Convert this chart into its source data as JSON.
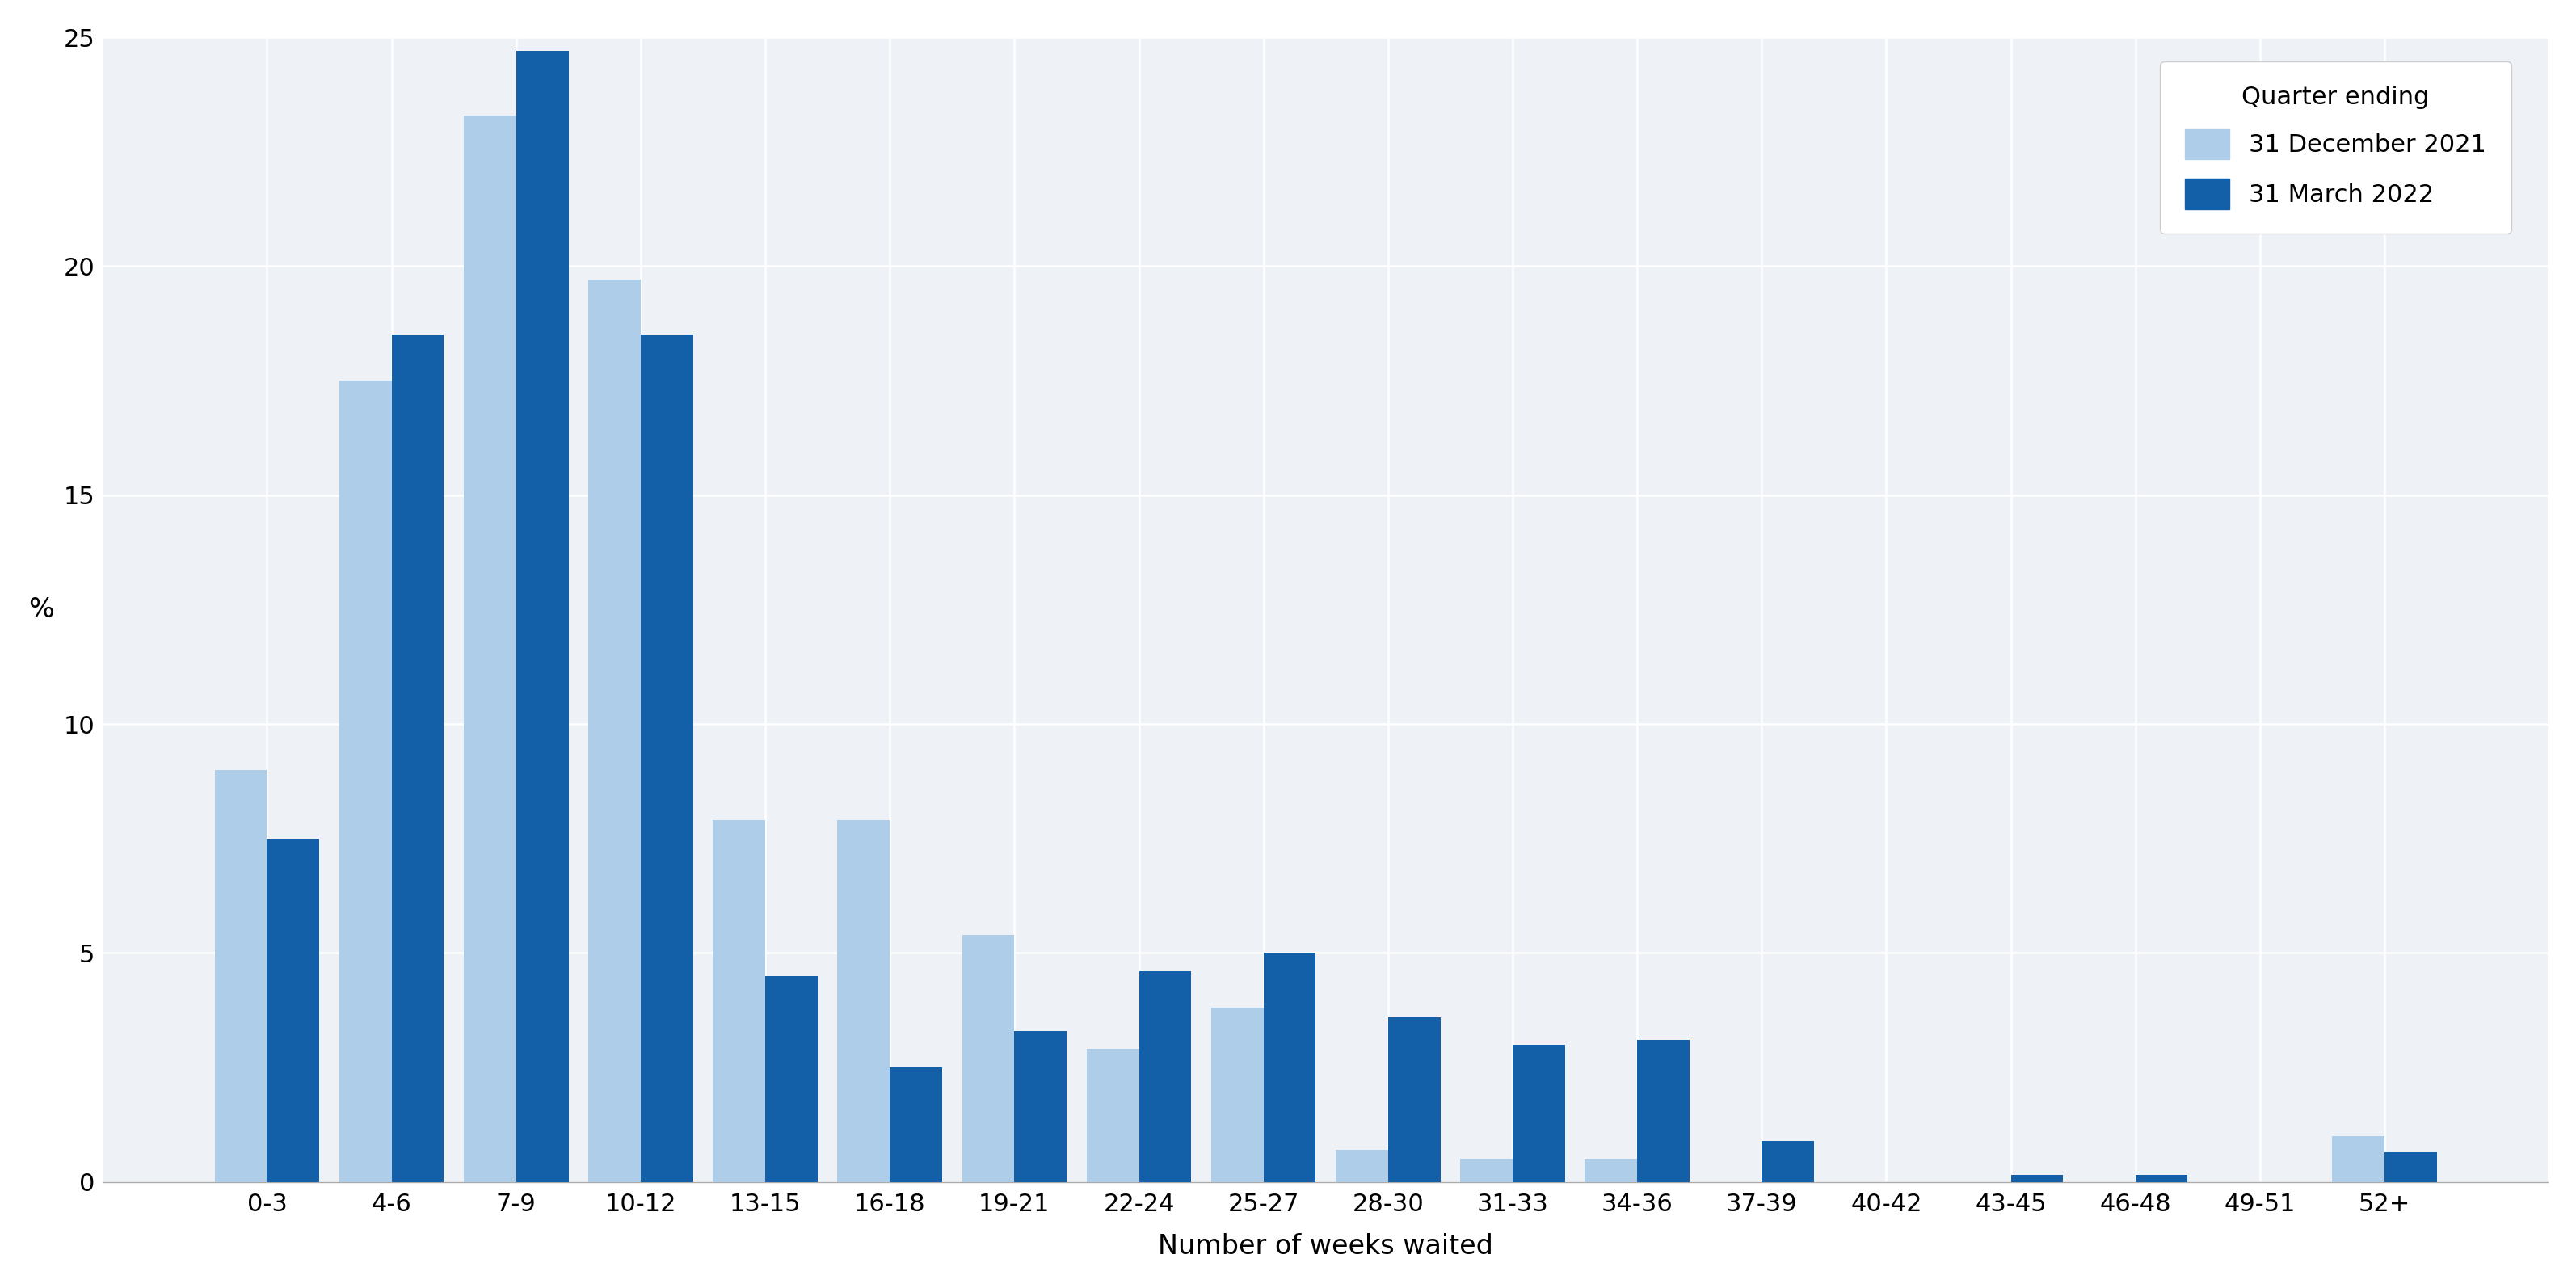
{
  "categories": [
    "0-3",
    "4-6",
    "7-9",
    "10-12",
    "13-15",
    "16-18",
    "19-21",
    "22-24",
    "25-27",
    "28-30",
    "31-33",
    "34-36",
    "37-39",
    "40-42",
    "43-45",
    "46-48",
    "49-51",
    "52+"
  ],
  "dec2021": [
    9.0,
    17.5,
    23.3,
    19.7,
    7.9,
    7.9,
    5.4,
    2.9,
    3.8,
    0.7,
    0.5,
    0.5,
    0.0,
    0.0,
    0.0,
    0.0,
    0.0,
    1.0
  ],
  "mar2022": [
    7.5,
    18.5,
    24.7,
    18.5,
    4.5,
    2.5,
    3.3,
    4.6,
    5.0,
    3.6,
    3.0,
    3.1,
    0.9,
    0.0,
    0.15,
    0.15,
    0.0,
    0.65
  ],
  "color_dec2021": "#aecde8",
  "color_mar2022": "#1460a8",
  "ylabel": "%",
  "xlabel": "Number of weeks waited",
  "legend_title": "Quarter ending",
  "legend_label1": "31 December 2021",
  "legend_label2": "31 March 2022",
  "ylim": [
    0,
    25
  ],
  "yticks": [
    0,
    5,
    10,
    15,
    20,
    25
  ],
  "plot_bg_color": "#eef2f7",
  "fig_bg_color": "#ffffff",
  "grid_color": "#ffffff",
  "spine_color": "#aaaaaa",
  "tick_label_fontsize": 22,
  "axis_label_fontsize": 24,
  "legend_fontsize": 22,
  "legend_title_fontsize": 22,
  "bar_width": 0.42
}
